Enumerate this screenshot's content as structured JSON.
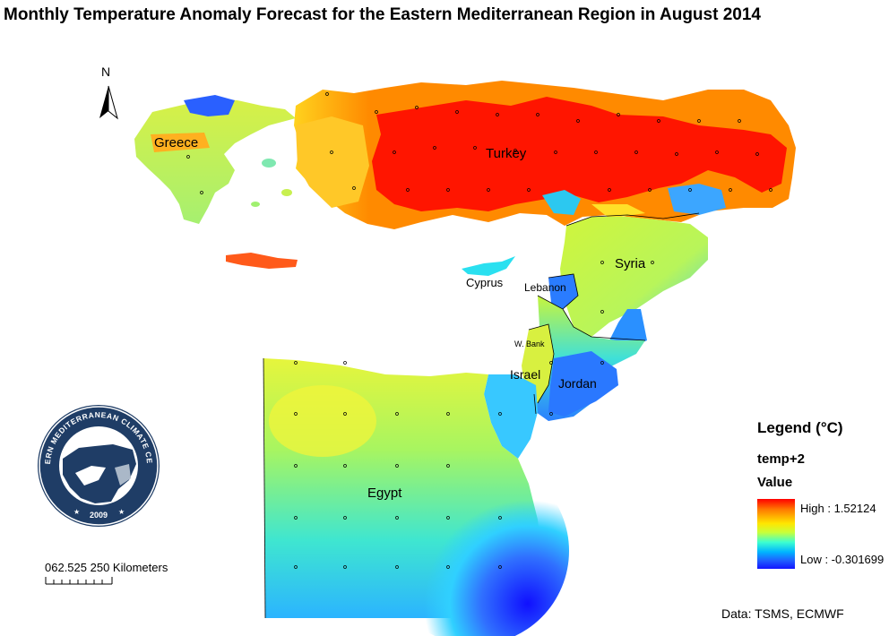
{
  "title": "Monthly  Temperature Anomaly Forecast for the Eastern Mediterranean Region in August 2014",
  "north_arrow": "N",
  "labels": {
    "greece": "Greece",
    "turkey": "Turkey",
    "cyprus": "Cyprus",
    "lebanon": "Lebanon",
    "syria": "Syria",
    "west_bank": "W. Bank",
    "israel": "Israel",
    "jordan": "Jordan",
    "egypt": "Egypt"
  },
  "logo": {
    "text": "EASTERN MEDITERRANEAN CLIMATE CENTRE",
    "year": "2009"
  },
  "scale": {
    "text": "062.525   250 Kilometers"
  },
  "legend": {
    "title": "Legend (°C)",
    "layer": "temp+2",
    "field": "Value",
    "high_label": "High : 1.52124",
    "low_label": "Low : -0.301699",
    "high_value": 1.52124,
    "low_value": -0.301699,
    "ramp_colors": [
      "#ff0000",
      "#ff7a00",
      "#ffe600",
      "#c8ff3a",
      "#3cffd0",
      "#00b4ff",
      "#2060ff",
      "#1414ff"
    ]
  },
  "credit": "Data:  TSMS, ECMWF"
}
